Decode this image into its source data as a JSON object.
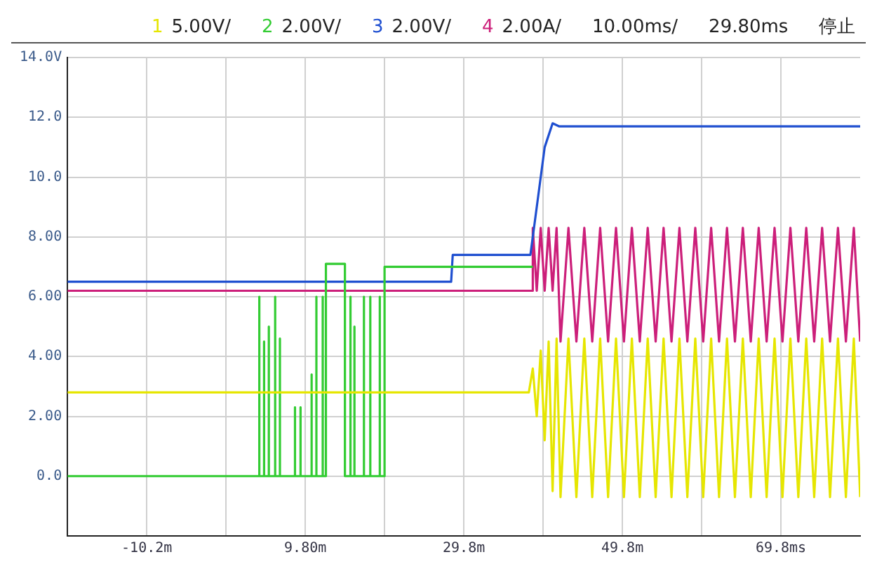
{
  "chart_data": {
    "type": "line",
    "legend": "top",
    "grid": true,
    "marker": "none",
    "line_style": "solid",
    "annotations": [
      "5.00V/",
      "2.00V/",
      "2.00V/",
      "2.00A/",
      "10.00ms/",
      "29.80ms",
      "停止"
    ],
    "xlim": [
      -20.2,
      79.8
    ],
    "xticks": [
      {
        "value": -10.2,
        "label": "-10.2m"
      },
      {
        "value": -0.2,
        "label": null
      },
      {
        "value": 9.8,
        "label": "9.80m"
      },
      {
        "value": 19.8,
        "label": null
      },
      {
        "value": 29.8,
        "label": "29.8m"
      },
      {
        "value": 39.8,
        "label": null
      },
      {
        "value": 49.8,
        "label": "49.8m"
      },
      {
        "value": 59.8,
        "label": null
      },
      {
        "value": 69.8,
        "label": "69.8ms"
      }
    ],
    "ylim": [
      -2,
      14
    ],
    "yticks": [
      {
        "value": 0,
        "label": "0.0"
      },
      {
        "value": 2,
        "label": "2.00"
      },
      {
        "value": 4,
        "label": "4.00"
      },
      {
        "value": 6,
        "label": "6.00"
      },
      {
        "value": 8,
        "label": "8.00"
      },
      {
        "value": 10,
        "label": "10.0"
      },
      {
        "value": 12,
        "label": "12.0"
      },
      {
        "value": 14,
        "label": "14.0V"
      }
    ],
    "series": [
      {
        "name": "1",
        "color": "#e6e600",
        "x": [
          -20.2,
          38,
          38.5,
          39,
          39.5,
          40,
          40.5,
          41,
          41.5,
          42,
          43,
          44,
          45,
          46,
          47,
          48,
          49,
          50,
          51,
          52,
          53,
          54,
          55,
          56,
          57,
          58,
          59,
          60,
          61,
          62,
          63,
          64,
          65,
          66,
          67,
          68,
          69,
          70,
          71,
          72,
          73,
          74,
          75,
          76,
          77,
          78,
          79,
          79.8
        ],
        "values": [
          2.8,
          2.8,
          3.6,
          2.0,
          4.2,
          1.2,
          4.5,
          -0.5,
          4.6,
          -0.7,
          4.6,
          -0.7,
          4.6,
          -0.7,
          4.6,
          -0.7,
          4.6,
          -0.7,
          4.6,
          -0.7,
          4.6,
          -0.7,
          4.6,
          -0.7,
          4.6,
          -0.7,
          4.6,
          -0.7,
          4.6,
          -0.7,
          4.6,
          -0.7,
          4.6,
          -0.7,
          4.6,
          -0.7,
          4.6,
          -0.7,
          4.6,
          -0.7,
          4.6,
          -0.7,
          4.6,
          -0.7,
          4.6,
          -0.7,
          4.6,
          -0.7
        ]
      },
      {
        "name": "2",
        "color": "#33cc33",
        "x": [
          -20.2,
          4.0,
          4.0,
          4.0,
          4.6,
          4.6,
          4.6,
          5.2,
          5.2,
          5.2,
          6.0,
          6.0,
          6.0,
          6.6,
          6.6,
          6.6,
          8.5,
          8.5,
          8.5,
          9.2,
          9.2,
          9.2,
          10.6,
          10.6,
          10.6,
          11.2,
          11.2,
          11.2,
          12.0,
          12.0,
          12.0,
          12.4,
          12.4,
          14.8,
          14.8,
          15.5,
          15.5,
          15.5,
          16.0,
          16.0,
          16.0,
          17.2,
          17.2,
          17.2,
          18.0,
          18.0,
          18.0,
          19.2,
          19.2,
          19.2,
          19.8,
          19.8,
          38.5
        ],
        "values": [
          0,
          0,
          6.0,
          0,
          0,
          4.5,
          0,
          0,
          5.0,
          0,
          0,
          6.0,
          0,
          0,
          4.6,
          0,
          0,
          2.3,
          0,
          0,
          2.3,
          0,
          0,
          3.4,
          0,
          0,
          6.0,
          0,
          0,
          6.0,
          0,
          0,
          7.1,
          7.1,
          0,
          0,
          6.0,
          0,
          0,
          5.0,
          0,
          0,
          6.0,
          0,
          0,
          6.0,
          0,
          0,
          6.0,
          0,
          0,
          7.0,
          7.0
        ]
      },
      {
        "name": "3",
        "color": "#1f4fd0",
        "x": [
          -20.2,
          28.2,
          28.4,
          38.2,
          39,
          40,
          41,
          41.8,
          79.8
        ],
        "values": [
          6.5,
          6.5,
          7.4,
          7.4,
          9.0,
          11.0,
          11.8,
          11.7,
          11.7
        ]
      },
      {
        "name": "4",
        "color": "#cc1f7a",
        "x": [
          -20.2,
          38.4,
          38.5,
          39,
          39.5,
          40,
          40.5,
          41,
          41.5,
          42,
          43,
          44,
          45,
          46,
          47,
          48,
          49,
          50,
          51,
          52,
          53,
          54,
          55,
          56,
          57,
          58,
          59,
          60,
          61,
          62,
          63,
          64,
          65,
          66,
          67,
          68,
          69,
          70,
          71,
          72,
          73,
          74,
          75,
          76,
          77,
          78,
          79,
          79.8
        ],
        "values": [
          6.2,
          6.2,
          8.3,
          6.2,
          8.3,
          6.2,
          8.3,
          6.2,
          8.3,
          4.5,
          8.3,
          4.5,
          8.3,
          4.5,
          8.3,
          4.5,
          8.3,
          4.5,
          8.3,
          4.5,
          8.3,
          4.5,
          8.3,
          4.5,
          8.3,
          4.5,
          8.3,
          4.5,
          8.3,
          4.5,
          8.3,
          4.5,
          8.3,
          4.5,
          8.3,
          4.5,
          8.3,
          4.5,
          8.3,
          4.5,
          8.3,
          4.5,
          8.3,
          4.5,
          8.3,
          4.5,
          8.3,
          4.5
        ]
      }
    ]
  }
}
